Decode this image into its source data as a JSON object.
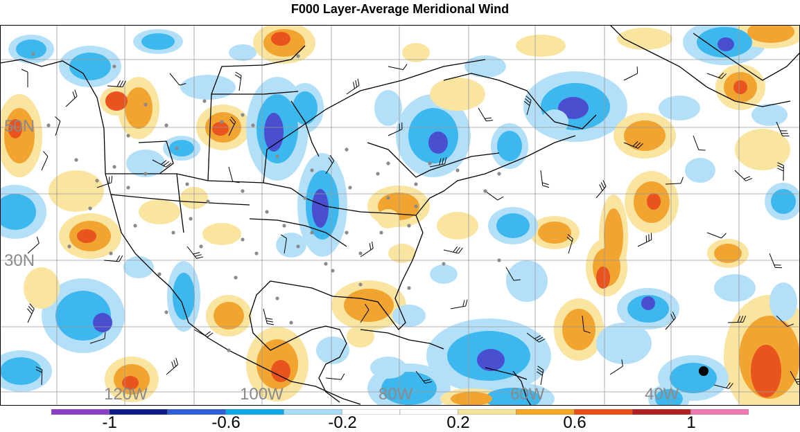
{
  "title": "F000 Layer-Average Meridional Wind",
  "lat_labels": [
    "50N",
    "30N"
  ],
  "lon_labels": [
    "120W",
    "100W",
    "80W",
    "60W",
    "40W"
  ],
  "colorbar": {
    "tick_labels": [
      "-1",
      "-0.6",
      "-0.2",
      "0.2",
      "0.6",
      "1"
    ],
    "colors": [
      "#8b3fc8",
      "#0a1a8c",
      "#2e5fd9",
      "#0aa8ea",
      "#a7dcf6",
      "#ffffff",
      "#ffffff",
      "#f6e49a",
      "#f5a623",
      "#ec4b1a",
      "#b3201f",
      "#f07ab4"
    ]
  },
  "colors": {
    "strong_negative": "#4a4fd0",
    "negative": "#3db8ee",
    "weak_negative": "#b3e0f8",
    "weak_positive": "#f9e4a0",
    "positive": "#f2a431",
    "strong_positive": "#e9531e",
    "graticule": "#9a9a9a",
    "station_dot": "#8a8a8a"
  }
}
